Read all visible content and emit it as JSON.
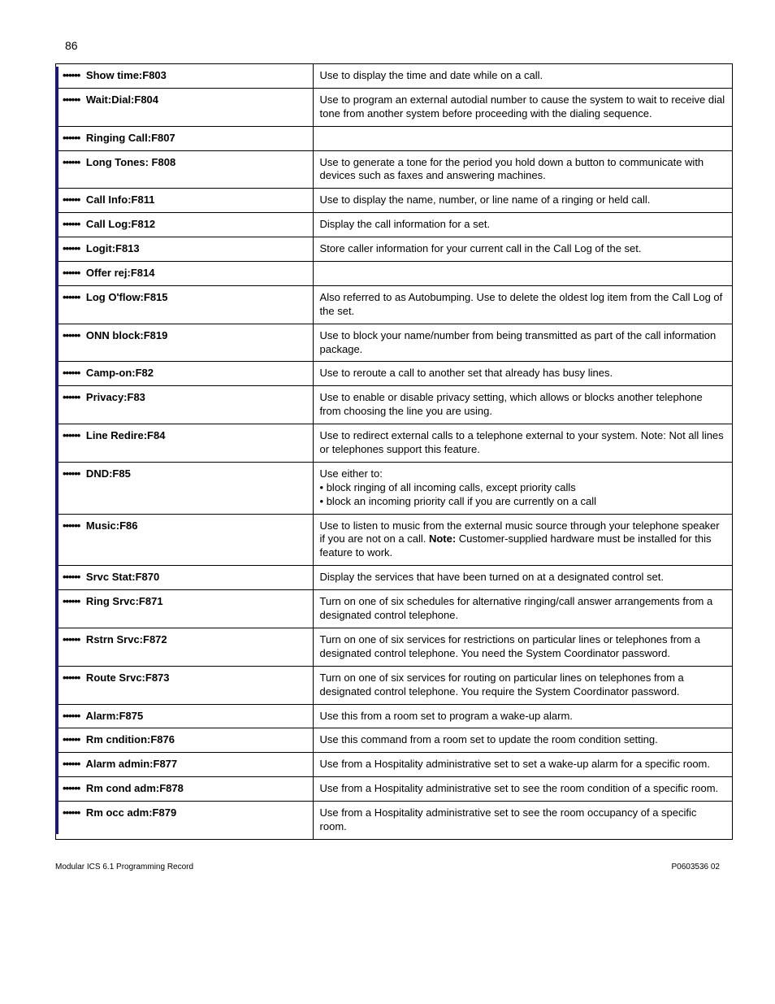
{
  "page_number": "86",
  "bullet_prefix": "••••••",
  "rows": [
    {
      "label": "Show time:F803",
      "desc": "Use to display the time and date while on a call."
    },
    {
      "label": "Wait:Dial:F804",
      "desc": "Use to program an external autodial number to cause the system to wait to receive dial tone from another system before proceeding with the dialing sequence."
    },
    {
      "label": "Ringing Call:F807",
      "desc": ""
    },
    {
      "label": "Long Tones: F808",
      "desc": "Use to generate a tone for the period you hold down a button to communicate with devices such as faxes and answering machines."
    },
    {
      "label": "Call Info:F811",
      "desc": "Use to display the name, number, or line name of a ringing or held call."
    },
    {
      "label": "Call Log:F812",
      "desc": "Display the call information for a set."
    },
    {
      "label": "Logit:F813",
      "desc": "Store caller information for your current call in the Call Log of the set."
    },
    {
      "label": "Offer rej:F814",
      "desc": ""
    },
    {
      "label": "Log O'flow:F815",
      "desc": "Also referred to as Autobumping. Use to delete the oldest log item from the Call Log of the set."
    },
    {
      "label": "ONN block:F819",
      "desc": "Use to block your name/number from being transmitted as part of the call information package."
    },
    {
      "label": "Camp-on:F82",
      "desc": "Use to reroute a call to another set that already has busy lines."
    },
    {
      "label": "Privacy:F83",
      "desc": "Use to enable or disable privacy setting, which allows or blocks another telephone from choosing the line you are using."
    },
    {
      "label": "Line Redire:F84",
      "desc": "Use to redirect external calls to a telephone external to your system. Note: Not all lines or telephones support this feature."
    },
    {
      "label": "DND:F85",
      "desc_lines": [
        "Use either to:",
        "• block ringing of all incoming calls, except priority calls",
        "• block an incoming priority call if you are currently on a call"
      ]
    },
    {
      "label": "Music:F86",
      "desc_parts": [
        {
          "text": "Use to listen to music from the external music source through your telephone speaker if you are not on a call. "
        },
        {
          "text": "Note:",
          "bold": true
        },
        {
          "text": " Customer-supplied hardware must be installed for this feature to work."
        }
      ]
    },
    {
      "label": "Srvc Stat:F870",
      "desc": "Display the services that have been turned on at a designated control set."
    },
    {
      "label": "Ring Srvc:F871",
      "desc": "Turn on one of six schedules for alternative ringing/call answer arrangements from a designated control telephone."
    },
    {
      "label": "Rstrn Srvc:F872",
      "desc": "Turn on one of six services for restrictions on particular lines or telephones from a designated control telephone. You need the System Coordinator password."
    },
    {
      "label": "Route Srvc:F873",
      "desc": "Turn on one of six services for routing on particular lines on telephones from a designated control telephone. You require the System Coordinator password."
    },
    {
      "label": "Alarm:F875",
      "desc": "Use this from a room set to program a wake-up alarm."
    },
    {
      "label": "Rm cndition:F876",
      "desc": "Use this command from a room set to update the room condition setting."
    },
    {
      "label": "Alarm admin:F877",
      "desc": "Use from a Hospitality administrative set to set a wake-up alarm for a specific room."
    },
    {
      "label": "Rm cond adm:F878",
      "desc": "Use from a Hospitality administrative set to see the room condition of a specific room."
    },
    {
      "label": "Rm occ adm:F879",
      "desc": "Use from a Hospitality administrative set to see the room occupancy of a specific room."
    }
  ],
  "footer_left": "Modular ICS 6.1 Programming Record",
  "footer_right": "P0603536  02"
}
